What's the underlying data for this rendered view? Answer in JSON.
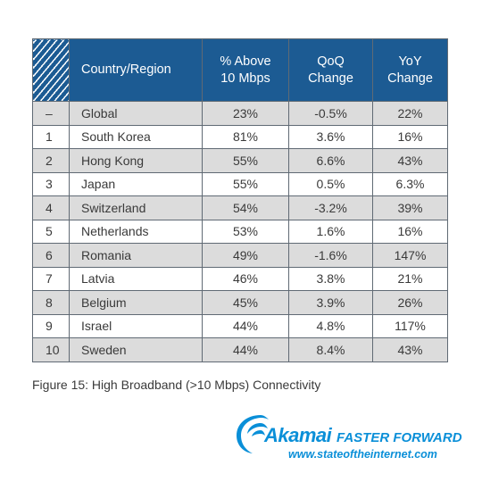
{
  "table": {
    "headers": {
      "country": "Country/Region",
      "above_line1": "% Above",
      "above_line2": "10 Mbps",
      "qoq_line1": "QoQ",
      "qoq_line2": "Change",
      "yoy_line1": "YoY",
      "yoy_line2": "Change"
    },
    "rows": [
      {
        "rank": "–",
        "country": "Global",
        "above": "23%",
        "qoq": "-0.5%",
        "yoy": "22%"
      },
      {
        "rank": "1",
        "country": "South Korea",
        "above": "81%",
        "qoq": "3.6%",
        "yoy": "16%"
      },
      {
        "rank": "2",
        "country": "Hong Kong",
        "above": "55%",
        "qoq": "6.6%",
        "yoy": "43%"
      },
      {
        "rank": "3",
        "country": "Japan",
        "above": "55%",
        "qoq": "0.5%",
        "yoy": "6.3%"
      },
      {
        "rank": "4",
        "country": "Switzerland",
        "above": "54%",
        "qoq": "-3.2%",
        "yoy": "39%"
      },
      {
        "rank": "5",
        "country": "Netherlands",
        "above": "53%",
        "qoq": "1.6%",
        "yoy": "16%"
      },
      {
        "rank": "6",
        "country": "Romania",
        "above": "49%",
        "qoq": "-1.6%",
        "yoy": "147%"
      },
      {
        "rank": "7",
        "country": "Latvia",
        "above": "46%",
        "qoq": "3.8%",
        "yoy": "21%"
      },
      {
        "rank": "8",
        "country": "Belgium",
        "above": "45%",
        "qoq": "3.9%",
        "yoy": "26%"
      },
      {
        "rank": "9",
        "country": "Israel",
        "above": "44%",
        "qoq": "4.8%",
        "yoy": "117%"
      },
      {
        "rank": "10",
        "country": "Sweden",
        "above": "44%",
        "qoq": "8.4%",
        "yoy": "43%"
      }
    ]
  },
  "caption": "Figure 15: High Broadband (>10 Mbps) Connectivity",
  "branding": {
    "brand": "Akamai",
    "tagline": "FASTER FORWARD",
    "url": "www.stateoftheinternet.com"
  },
  "colors": {
    "header_bg": "#1c5b93",
    "stripe": "#dcdcdc",
    "brand_blue": "#0a8fd8"
  },
  "icons": [
    "akamai-logo-icon",
    "hatch-pattern"
  ]
}
